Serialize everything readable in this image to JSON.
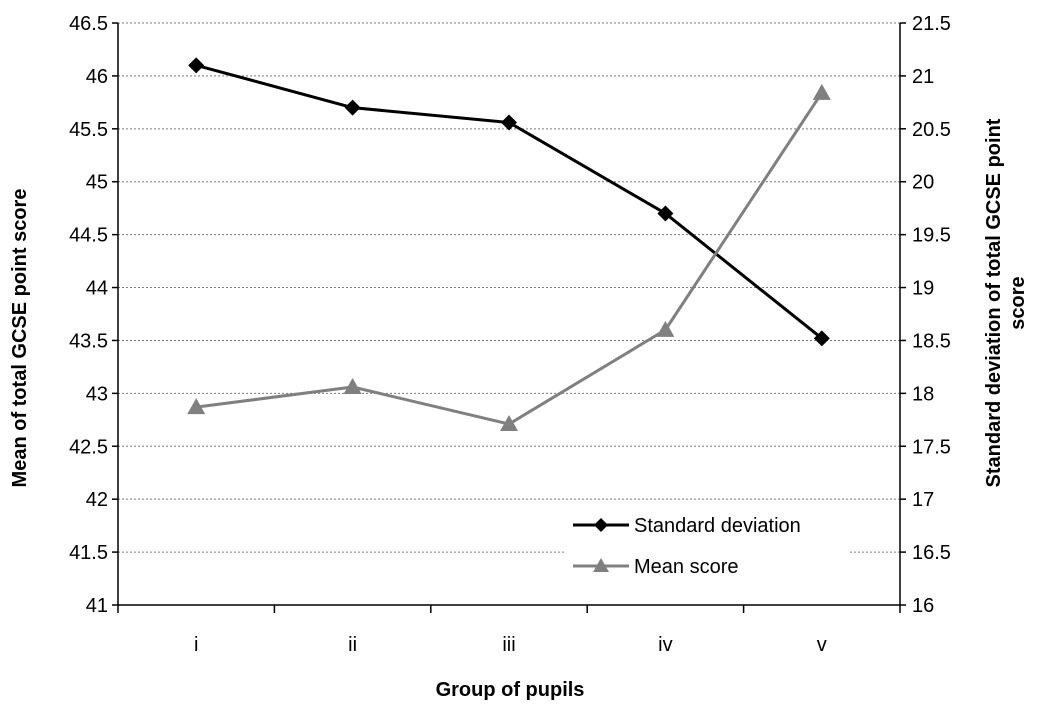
{
  "chart_data": {
    "type": "line",
    "categories": [
      "i",
      "ii",
      "iii",
      "iv",
      "v"
    ],
    "xlabel": "Group of pupils",
    "ylabel_left": "Mean of total GCSE point score",
    "ylabel_right_lines": [
      "Standard deviation of total GCSE point",
      "score"
    ],
    "y_left": {
      "min": 41,
      "max": 46.5,
      "step": 0.5,
      "ticks": [
        "41",
        "41.5",
        "42",
        "42.5",
        "43",
        "43.5",
        "44",
        "44.5",
        "45",
        "45.5",
        "46",
        "46.5"
      ]
    },
    "y_right": {
      "min": 16,
      "max": 21.5,
      "step": 0.5,
      "ticks": [
        "16",
        "16.5",
        "17",
        "17.5",
        "18",
        "18.5",
        "19",
        "19.5",
        "20",
        "20.5",
        "21",
        "21.5"
      ]
    },
    "series": [
      {
        "name": "Standard deviation",
        "axis": "right",
        "marker": "diamond",
        "color": "#000000",
        "values": [
          21.1,
          20.7,
          20.56,
          19.7,
          18.52
        ]
      },
      {
        "name": "Mean score",
        "axis": "left",
        "marker": "triangle",
        "color": "#808080",
        "values": [
          42.87,
          43.06,
          42.71,
          43.6,
          45.84
        ]
      }
    ],
    "grid": true,
    "legend_position": "bottom-right"
  }
}
